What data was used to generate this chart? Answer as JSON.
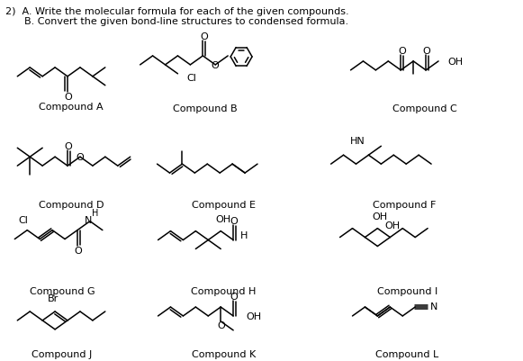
{
  "title_line1": "2)  A. Write the molecular formula for each of the given compounds.",
  "title_line2": "      B. Convert the given bond-line structures to condensed formula.",
  "background": "#ffffff",
  "text_color": "#000000",
  "compounds": [
    "Compound A",
    "Compound B",
    "Compound C",
    "Compound D",
    "Compound E",
    "Compound F",
    "Compound G",
    "Compound H",
    "Compound I",
    "Compound J",
    "Compound K",
    "Compound L"
  ]
}
